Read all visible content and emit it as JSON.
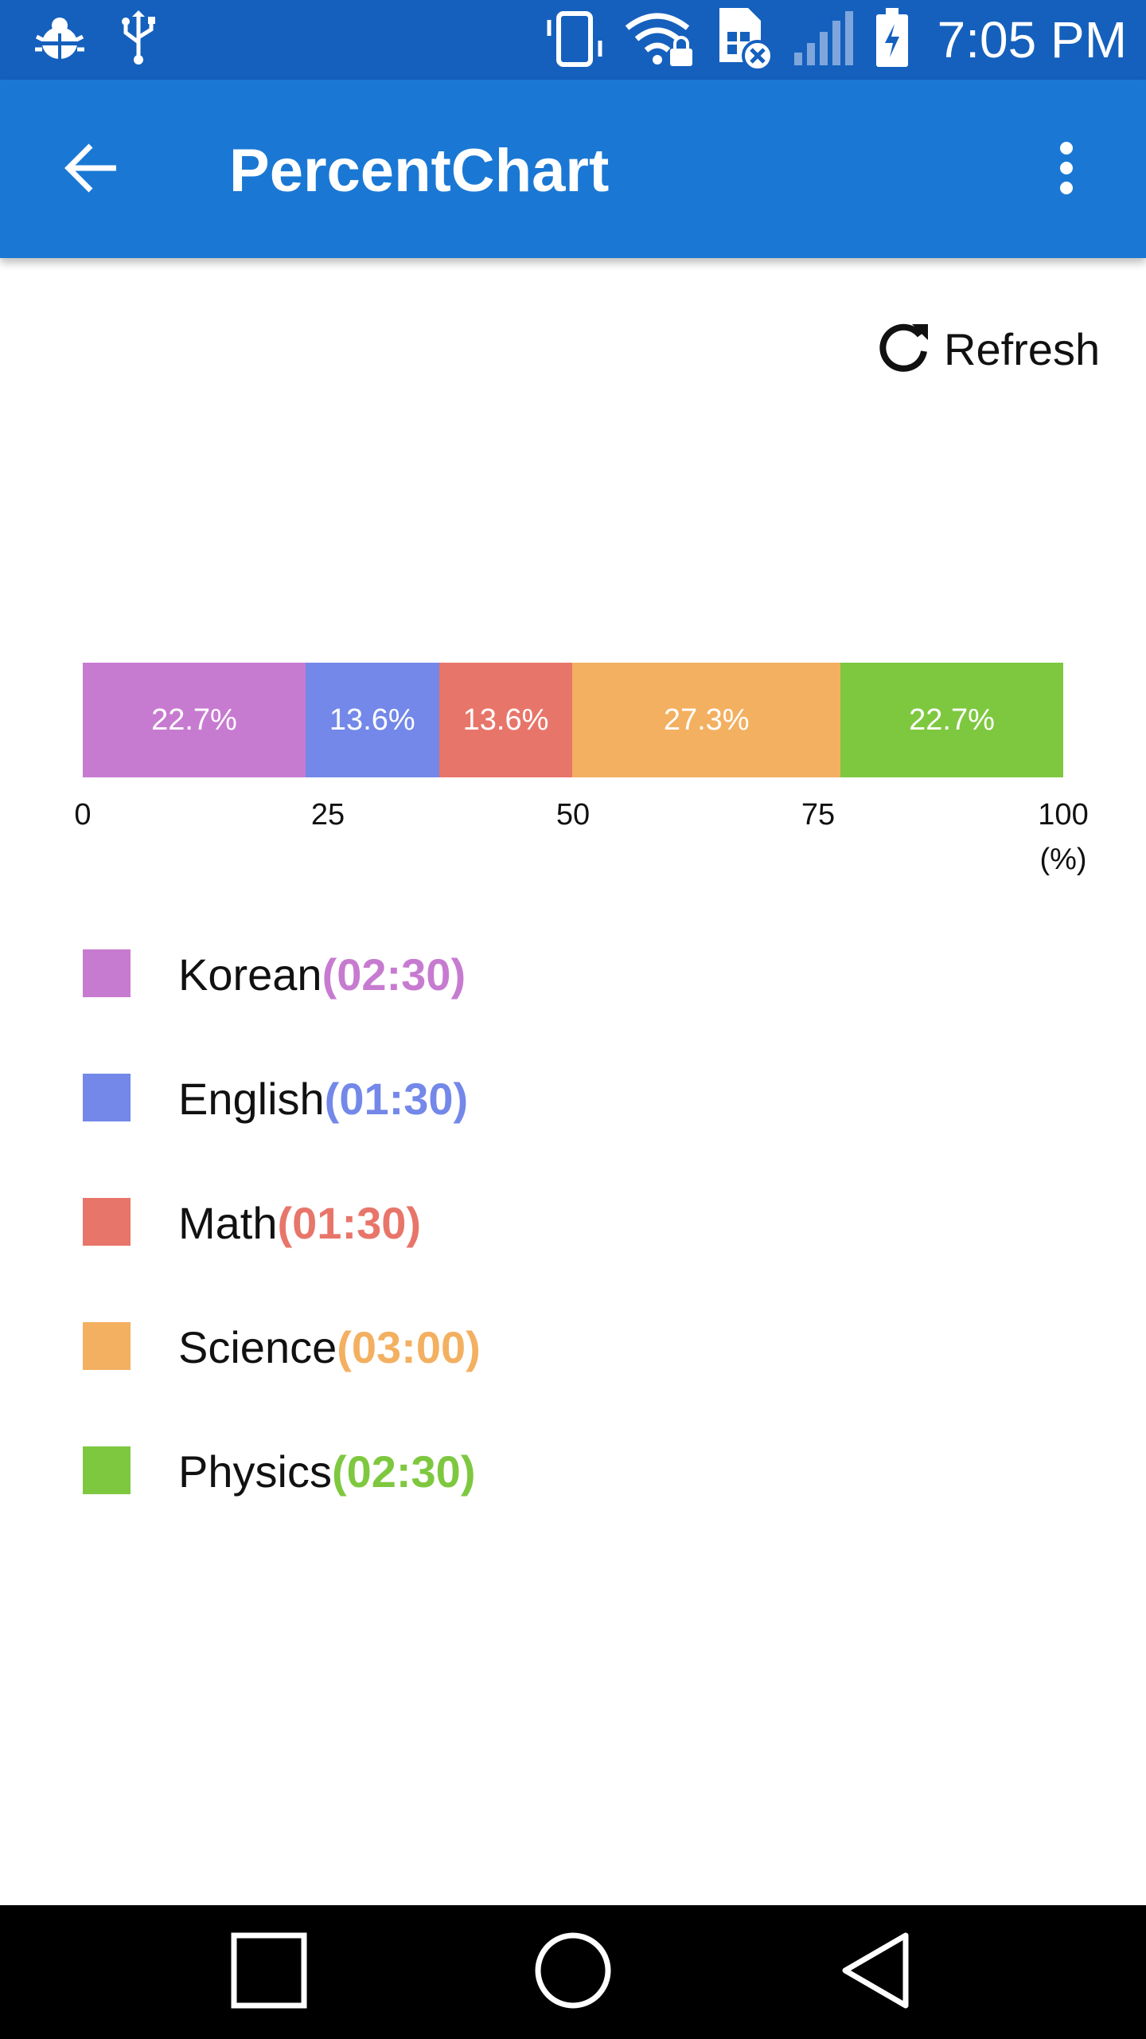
{
  "status_bar": {
    "time": "7:05 PM",
    "icons": [
      "debug-bug-icon",
      "usb-icon",
      "vibrate-icon",
      "wifi-lock-icon",
      "sim-error-icon",
      "signal-icon",
      "battery-charging-icon"
    ]
  },
  "app_bar": {
    "title": "PercentChart",
    "back_icon": "arrow-back-icon",
    "overflow_icon": "more-vert-icon"
  },
  "refresh": {
    "label": "Refresh",
    "icon": "refresh-icon"
  },
  "chart_data": {
    "type": "bar",
    "orientation": "horizontal-stacked",
    "categories": [
      "Korean",
      "English",
      "Math",
      "Science",
      "Physics"
    ],
    "values": [
      22.7,
      13.6,
      13.6,
      27.3,
      22.7
    ],
    "labels": [
      "22.7%",
      "13.6%",
      "13.6%",
      "27.3%",
      "22.7%"
    ],
    "colors": [
      "#c77bd0",
      "#7388e8",
      "#e8756a",
      "#f3b061",
      "#7ec840"
    ],
    "xticks": [
      "0",
      "25",
      "50",
      "75",
      "100"
    ],
    "xlim": [
      0,
      100
    ],
    "unit": "(%)",
    "grid": false
  },
  "legend": [
    {
      "name": "Korean",
      "time": "(02:30)",
      "color": "#c77bd0"
    },
    {
      "name": "English",
      "time": "(01:30)",
      "color": "#7388e8"
    },
    {
      "name": "Math",
      "time": "(01:30)",
      "color": "#e8756a"
    },
    {
      "name": "Science",
      "time": "(03:00)",
      "color": "#f3b061"
    },
    {
      "name": "Physics",
      "time": "(02:30)",
      "color": "#7ec840"
    }
  ],
  "nav_bar": {
    "recents_icon": "square-recents-icon",
    "home_icon": "circle-home-icon",
    "back_icon": "triangle-back-icon"
  }
}
